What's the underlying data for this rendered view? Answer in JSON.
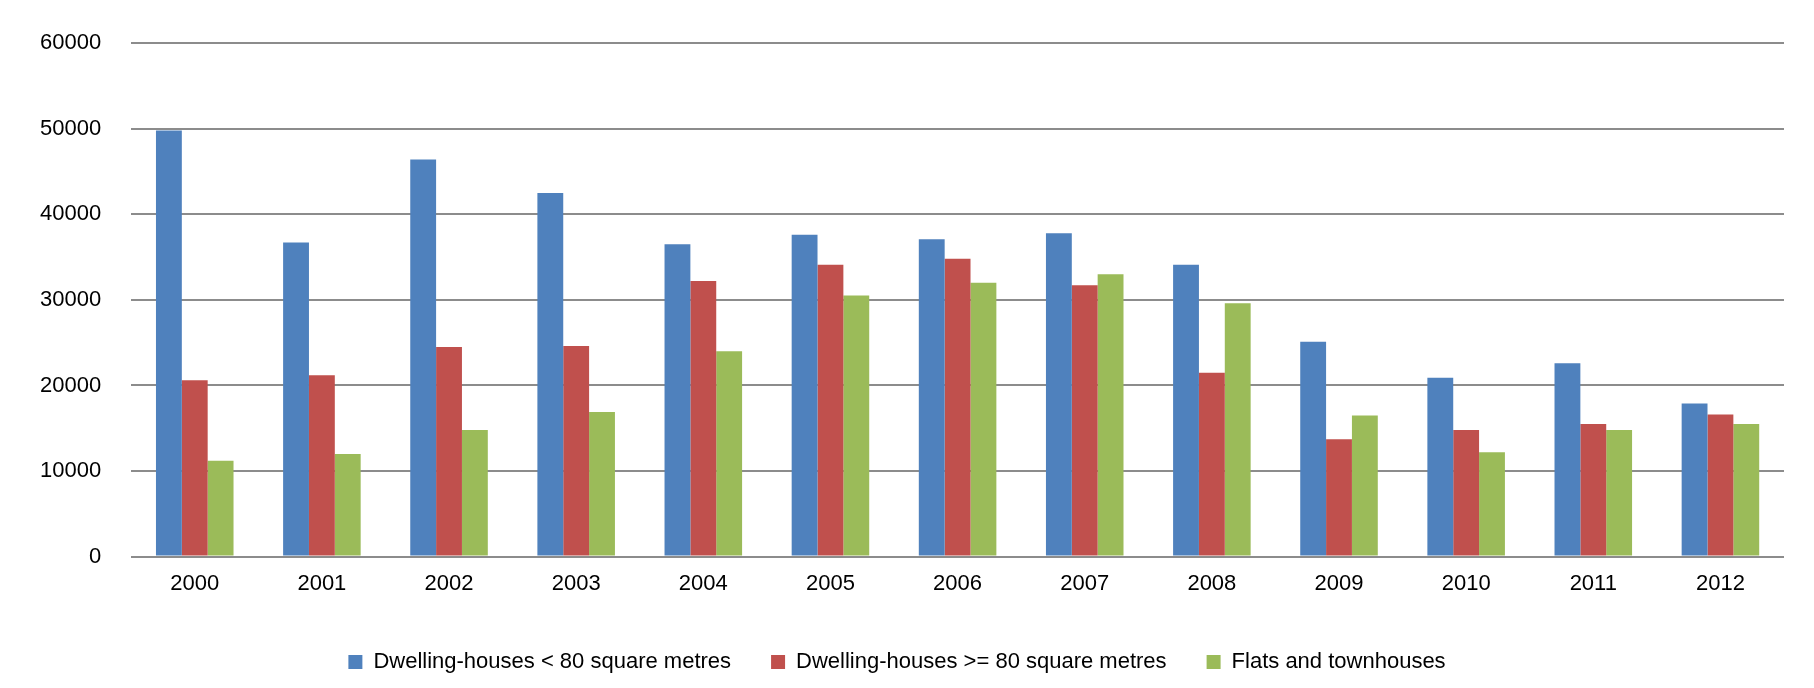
{
  "chart_data": {
    "type": "bar",
    "categories": [
      "2000",
      "2001",
      "2002",
      "2003",
      "2004",
      "2005",
      "2006",
      "2007",
      "2008",
      "2009",
      "2010",
      "2011",
      "2012"
    ],
    "series": [
      {
        "name": "Dwelling-houses < 80 square metres",
        "color": "#4f81bd",
        "values": [
          49800,
          36700,
          46400,
          42500,
          36500,
          37600,
          37100,
          37800,
          34100,
          25100,
          20900,
          22600,
          17900
        ]
      },
      {
        "name": "Dwelling-houses >= 80 square metres",
        "color": "#c0504d",
        "values": [
          20600,
          21200,
          24500,
          24600,
          32200,
          34100,
          34800,
          31700,
          21500,
          13700,
          14800,
          15500,
          16600
        ]
      },
      {
        "name": "Flats and townhouses",
        "color": "#9bbb59",
        "values": [
          11200,
          12000,
          14800,
          16900,
          24000,
          30500,
          32000,
          33000,
          29600,
          16500,
          12200,
          14800,
          15500
        ]
      }
    ],
    "ylim": [
      0,
      60000
    ],
    "yticks": [
      0,
      10000,
      20000,
      30000,
      40000,
      50000,
      60000
    ],
    "grid": "y",
    "legend": "bottom"
  }
}
